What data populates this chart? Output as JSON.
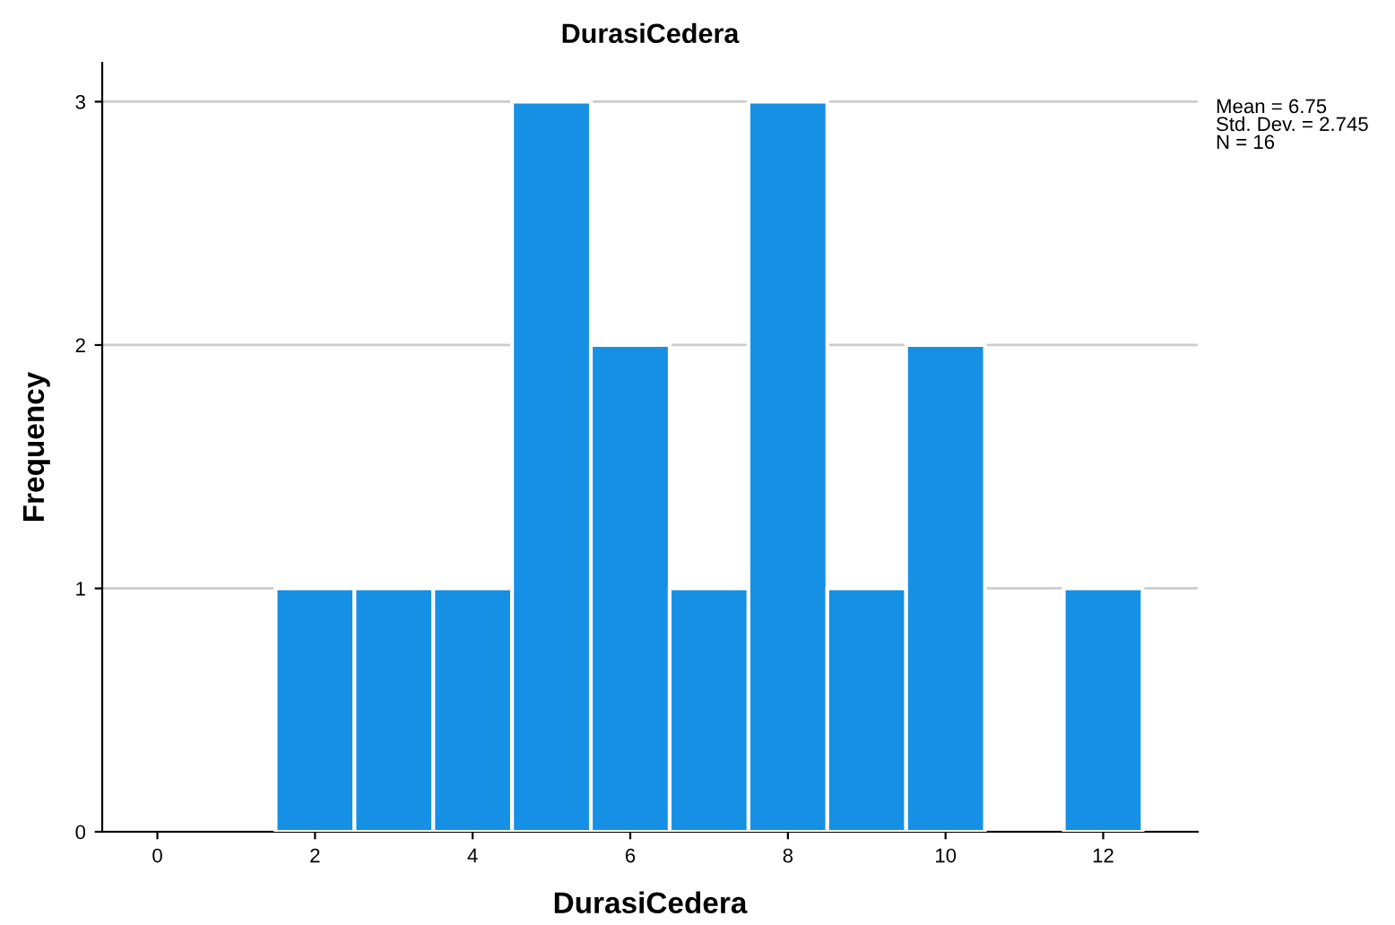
{
  "chart_data": {
    "type": "histogram",
    "title": "DurasiCedera",
    "xlabel": "DurasiCedera",
    "ylabel": "Frequency",
    "bins": [
      1.5,
      2.5,
      3.5,
      4.5,
      5.5,
      6.5,
      7.5,
      8.5,
      9.5,
      10.5,
      11.5,
      12.5
    ],
    "values": [
      1,
      1,
      1,
      3,
      2,
      1,
      3,
      1,
      2,
      0,
      1
    ],
    "color": "#1590e5",
    "xlim": [
      -0.7,
      13.2
    ],
    "xticks": [
      0,
      2,
      4,
      6,
      8,
      10,
      12
    ],
    "ylim": [
      0,
      3.16
    ],
    "yticks": [
      0,
      1,
      2,
      3
    ],
    "grid": "y",
    "annotations": [
      "Mean = 6.75\nStd. Dev. = 2.745\nN = 16"
    ]
  }
}
